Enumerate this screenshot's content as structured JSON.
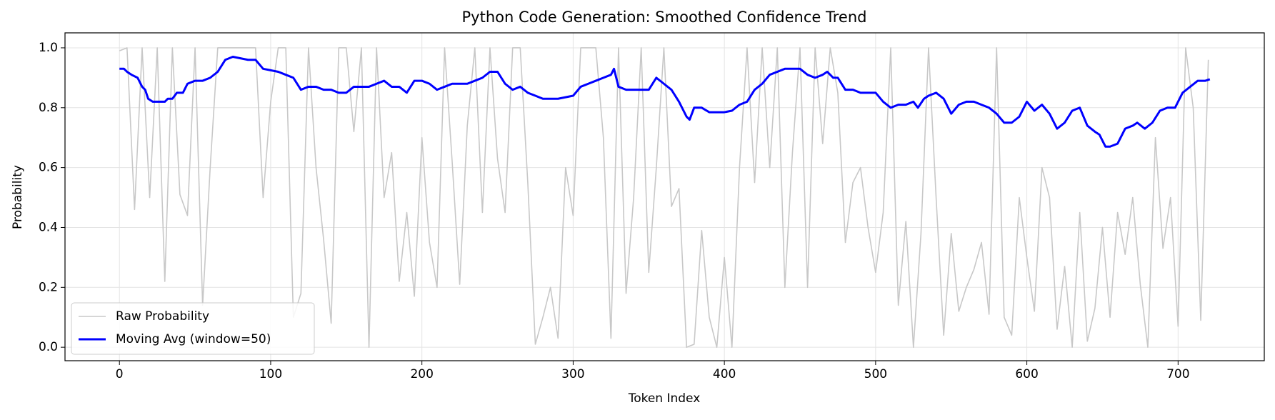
{
  "chart_data": {
    "type": "line",
    "title": "Python Code Generation: Smoothed Confidence Trend",
    "x_label": "Token Index",
    "y_label": "Probability",
    "xlim": [
      -36,
      757
    ],
    "xticks": [
      0,
      100,
      200,
      300,
      400,
      500,
      600,
      700
    ],
    "ylim": [
      -0.045,
      1.05
    ],
    "yticks": [
      0.0,
      0.2,
      0.4,
      0.6,
      0.8,
      1.0
    ],
    "yticks_labels_note": null,
    "grid": true,
    "legend": "lower left",
    "series": [
      {
        "name": "Raw Probability",
        "color": "#c8c8c8",
        "width": 1.6,
        "x": [
          0,
          5,
          10,
          15,
          20,
          25,
          30,
          35,
          40,
          45,
          50,
          55,
          60,
          65,
          70,
          75,
          80,
          85,
          90,
          95,
          100,
          105,
          110,
          115,
          120,
          125,
          130,
          135,
          140,
          145,
          150,
          155,
          160,
          165,
          170,
          175,
          180,
          185,
          190,
          195,
          200,
          205,
          210,
          215,
          220,
          225,
          230,
          235,
          240,
          245,
          250,
          255,
          260,
          265,
          270,
          275,
          280,
          285,
          290,
          295,
          300,
          305,
          310,
          315,
          320,
          325,
          330,
          335,
          340,
          345,
          350,
          355,
          360,
          365,
          370,
          375,
          380,
          385,
          390,
          395,
          400,
          405,
          410,
          415,
          420,
          425,
          430,
          435,
          440,
          445,
          450,
          455,
          460,
          465,
          470,
          475,
          480,
          485,
          490,
          495,
          500,
          505,
          510,
          515,
          520,
          525,
          530,
          535,
          540,
          545,
          550,
          555,
          560,
          565,
          570,
          575,
          580,
          585,
          590,
          595,
          600,
          605,
          610,
          615,
          620,
          625,
          630,
          635,
          640,
          645,
          650,
          655,
          660,
          665,
          670,
          675,
          680,
          685,
          690,
          695,
          700,
          705,
          710,
          715,
          720
        ],
        "values": [
          0.99,
          1.0,
          0.46,
          1.0,
          0.5,
          1.0,
          0.22,
          1.0,
          0.51,
          0.44,
          1.0,
          0.14,
          0.6,
          1.0,
          1.0,
          1.0,
          1.0,
          1.0,
          1.0,
          0.5,
          0.82,
          1.0,
          1.0,
          0.1,
          0.18,
          1.0,
          0.6,
          0.36,
          0.08,
          1.0,
          1.0,
          0.72,
          1.0,
          0.0,
          1.0,
          0.5,
          0.65,
          0.22,
          0.45,
          0.17,
          0.7,
          0.35,
          0.2,
          1.0,
          0.62,
          0.21,
          0.74,
          1.0,
          0.45,
          1.0,
          0.63,
          0.45,
          1.0,
          1.0,
          0.55,
          0.01,
          0.1,
          0.2,
          0.03,
          0.6,
          0.44,
          1.0,
          1.0,
          1.0,
          0.7,
          0.03,
          1.0,
          0.18,
          0.5,
          1.0,
          0.25,
          0.6,
          1.0,
          0.47,
          0.53,
          0.0,
          0.01,
          0.39,
          0.1,
          0.0,
          0.3,
          0.0,
          0.6,
          1.0,
          0.55,
          1.0,
          0.6,
          1.0,
          0.2,
          0.65,
          1.0,
          0.2,
          1.0,
          0.68,
          1.0,
          0.85,
          0.35,
          0.55,
          0.6,
          0.4,
          0.25,
          0.45,
          1.0,
          0.14,
          0.42,
          0.0,
          0.38,
          1.0,
          0.5,
          0.04,
          0.38,
          0.12,
          0.2,
          0.26,
          0.35,
          0.11,
          1.0,
          0.1,
          0.04,
          0.5,
          0.3,
          0.12,
          0.6,
          0.5,
          0.06,
          0.27,
          0.0,
          0.45,
          0.02,
          0.13,
          0.4,
          0.1,
          0.45,
          0.31,
          0.5,
          0.21,
          0.0,
          0.7,
          0.33,
          0.5,
          0.07,
          1.0,
          0.8,
          0.09,
          0.96
        ]
      },
      {
        "name": "Moving Avg (window=50)",
        "color": "#0000ff",
        "width": 3,
        "x": [
          0,
          3,
          5,
          8,
          12,
          15,
          17,
          19,
          22,
          25,
          28,
          30,
          32,
          35,
          38,
          42,
          45,
          50,
          55,
          60,
          65,
          70,
          75,
          80,
          85,
          90,
          95,
          100,
          105,
          110,
          115,
          120,
          125,
          130,
          135,
          140,
          145,
          150,
          155,
          160,
          165,
          170,
          175,
          180,
          185,
          190,
          195,
          200,
          205,
          210,
          215,
          220,
          225,
          230,
          235,
          240,
          245,
          250,
          255,
          260,
          265,
          270,
          275,
          280,
          290,
          300,
          305,
          310,
          315,
          320,
          325,
          327,
          330,
          335,
          340,
          350,
          355,
          360,
          365,
          370,
          375,
          377,
          380,
          385,
          390,
          400,
          405,
          410,
          415,
          420,
          425,
          430,
          435,
          440,
          450,
          455,
          460,
          465,
          468,
          472,
          475,
          480,
          485,
          490,
          500,
          505,
          510,
          515,
          520,
          525,
          528,
          532,
          535,
          540,
          545,
          550,
          555,
          560,
          565,
          570,
          575,
          580,
          585,
          590,
          595,
          600,
          605,
          610,
          615,
          620,
          625,
          630,
          635,
          640,
          645,
          648,
          652,
          655,
          660,
          665,
          670,
          673,
          678,
          683,
          688,
          693,
          698,
          703,
          708,
          713,
          718,
          721
        ],
        "values": [
          0.93,
          0.93,
          0.92,
          0.91,
          0.9,
          0.87,
          0.86,
          0.83,
          0.82,
          0.82,
          0.82,
          0.82,
          0.83,
          0.83,
          0.85,
          0.85,
          0.88,
          0.89,
          0.89,
          0.9,
          0.92,
          0.96,
          0.97,
          0.965,
          0.96,
          0.96,
          0.93,
          0.925,
          0.92,
          0.91,
          0.9,
          0.86,
          0.87,
          0.87,
          0.86,
          0.86,
          0.85,
          0.85,
          0.87,
          0.87,
          0.87,
          0.88,
          0.89,
          0.87,
          0.87,
          0.85,
          0.89,
          0.89,
          0.88,
          0.86,
          0.87,
          0.88,
          0.88,
          0.88,
          0.89,
          0.9,
          0.92,
          0.92,
          0.88,
          0.86,
          0.87,
          0.85,
          0.84,
          0.83,
          0.83,
          0.84,
          0.87,
          0.88,
          0.89,
          0.9,
          0.91,
          0.93,
          0.87,
          0.86,
          0.86,
          0.86,
          0.9,
          0.88,
          0.86,
          0.82,
          0.77,
          0.76,
          0.8,
          0.8,
          0.785,
          0.785,
          0.79,
          0.81,
          0.82,
          0.86,
          0.88,
          0.91,
          0.92,
          0.93,
          0.93,
          0.91,
          0.9,
          0.91,
          0.92,
          0.9,
          0.9,
          0.86,
          0.86,
          0.85,
          0.85,
          0.82,
          0.8,
          0.81,
          0.81,
          0.82,
          0.8,
          0.83,
          0.84,
          0.85,
          0.83,
          0.78,
          0.81,
          0.82,
          0.82,
          0.81,
          0.8,
          0.78,
          0.75,
          0.75,
          0.77,
          0.82,
          0.79,
          0.81,
          0.78,
          0.73,
          0.75,
          0.79,
          0.8,
          0.74,
          0.72,
          0.71,
          0.67,
          0.67,
          0.68,
          0.73,
          0.74,
          0.75,
          0.73,
          0.75,
          0.79,
          0.8,
          0.8,
          0.85,
          0.87,
          0.89,
          0.89,
          0.895
        ]
      }
    ]
  }
}
